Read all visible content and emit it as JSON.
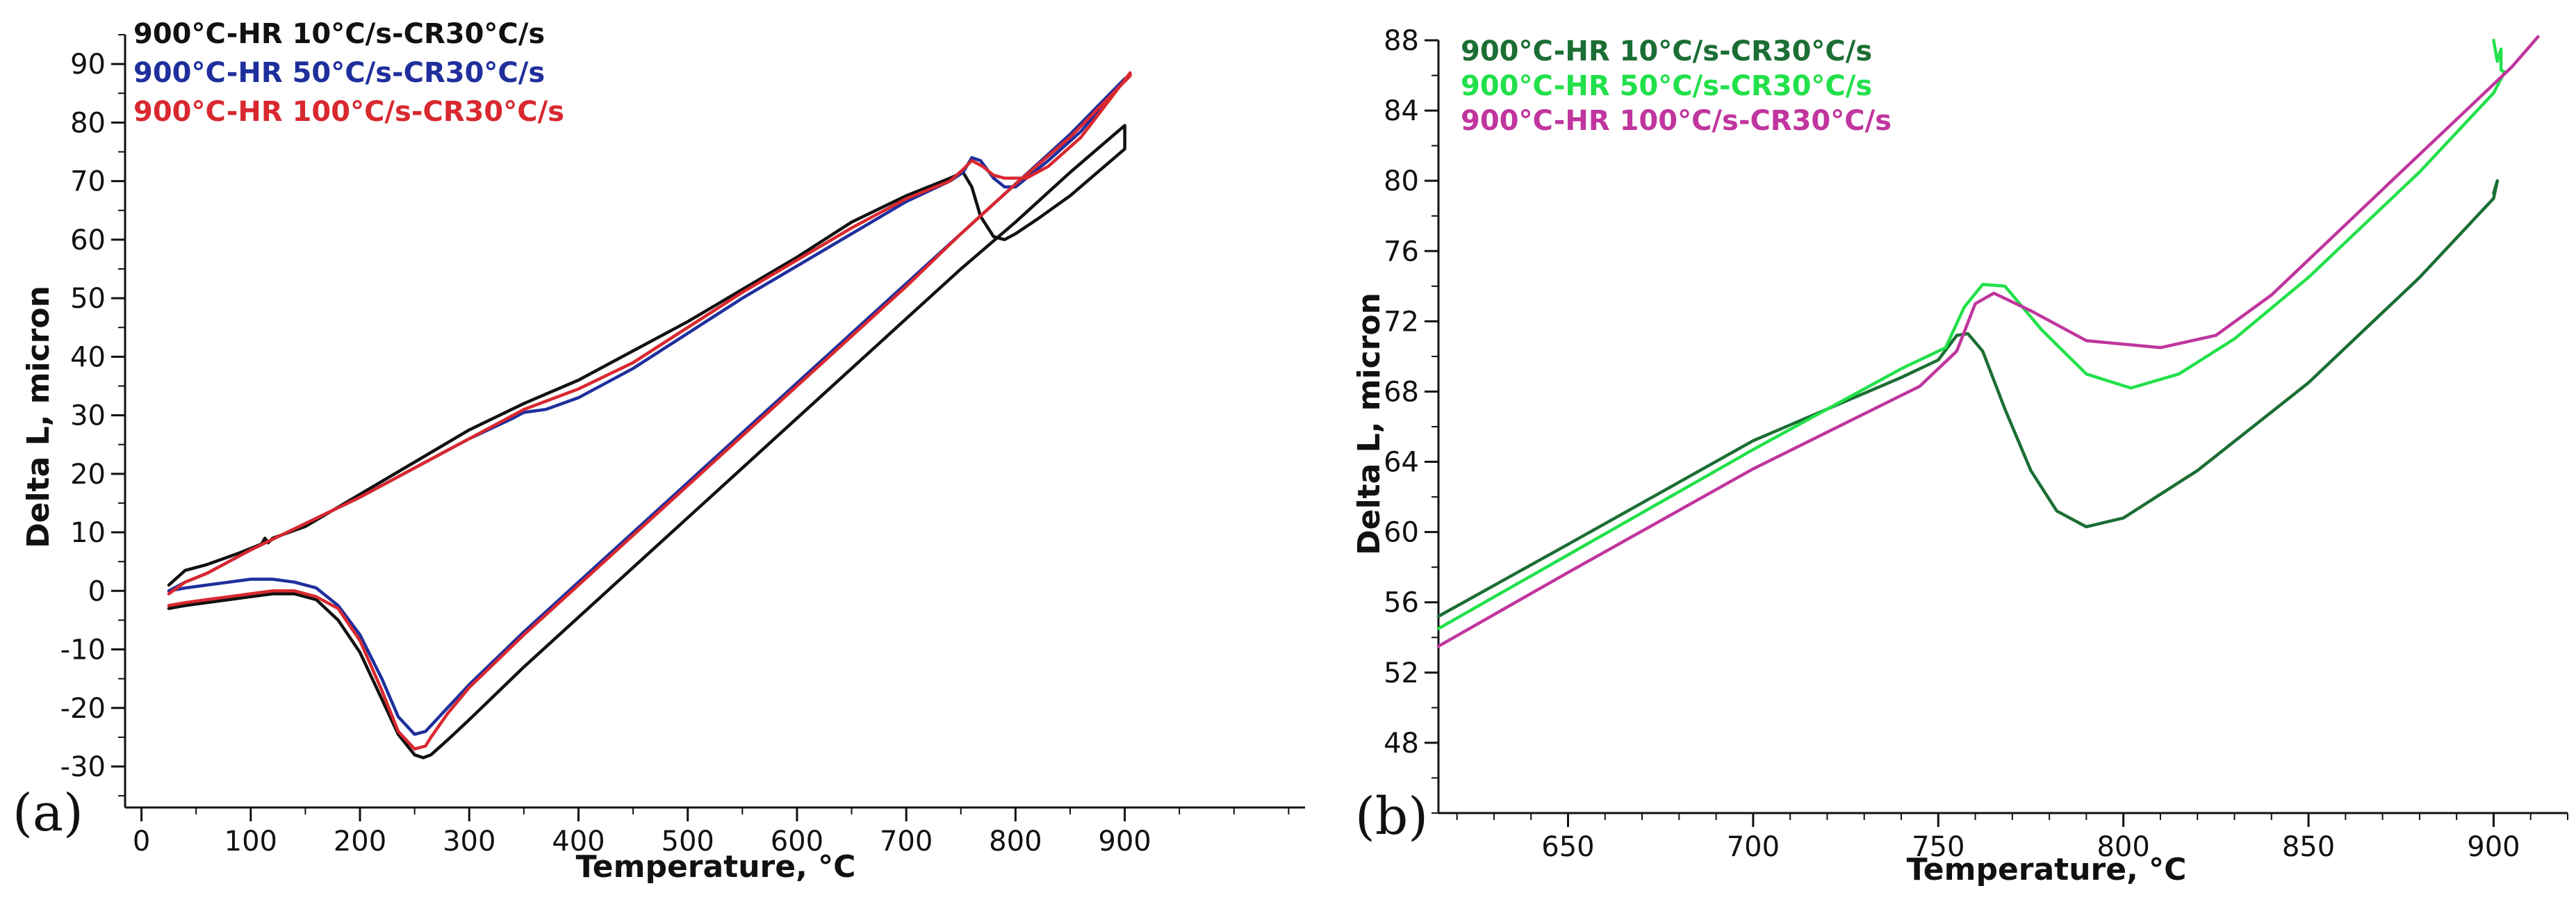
{
  "chart_data": [
    {
      "type": "line",
      "panel_label": "(a)",
      "title": "",
      "xlabel": "Temperature, °C",
      "ylabel": "Delta L, micron",
      "xlim": [
        -15,
        1065
      ],
      "ylim": [
        -37,
        95
      ],
      "xticks": [
        0,
        100,
        200,
        300,
        400,
        500,
        600,
        700,
        800,
        900
      ],
      "yticks": [
        -30,
        -20,
        -10,
        0,
        10,
        20,
        30,
        40,
        50,
        60,
        70,
        80,
        90
      ],
      "grid": false,
      "legend_position": "top-left",
      "series": [
        {
          "name": "900°C-HR 10°C/s-CR30°C/s",
          "color": "#111111",
          "x": [
            25,
            40,
            60,
            90,
            110,
            113,
            116,
            120,
            150,
            200,
            250,
            300,
            350,
            400,
            450,
            500,
            550,
            600,
            650,
            700,
            740,
            752,
            760,
            768,
            780,
            790,
            800,
            820,
            850,
            900,
            900,
            850,
            800,
            750,
            700,
            650,
            600,
            550,
            500,
            450,
            400,
            350,
            300,
            280,
            265,
            258,
            250,
            235,
            220,
            200,
            180,
            160,
            140,
            120,
            100,
            80,
            60,
            40,
            25
          ],
          "y": [
            1,
            3.5,
            4.5,
            6.5,
            8,
            9,
            8.2,
            9,
            11,
            16.5,
            22,
            27.5,
            32,
            36,
            41,
            46,
            51.5,
            57,
            63,
            67.5,
            70.5,
            71.5,
            69,
            64,
            60.5,
            60,
            61,
            63.5,
            67.5,
            75.5,
            79.5,
            71.5,
            63,
            55,
            46.5,
            38,
            29.5,
            21,
            12.5,
            4,
            -4.5,
            -13,
            -22,
            -25.5,
            -28,
            -28.5,
            -28,
            -24.5,
            -18.5,
            -10.5,
            -5,
            -1.5,
            -0.5,
            -0.5,
            -1,
            -1.5,
            -2,
            -2.5,
            -3
          ]
        },
        {
          "name": "900°C-HR 50°C/s-CR30°C/s",
          "color": "#1f2f9c",
          "x": [
            25,
            40,
            60,
            100,
            150,
            200,
            250,
            300,
            340,
            350,
            370,
            400,
            450,
            500,
            550,
            600,
            650,
            700,
            740,
            752,
            760,
            768,
            780,
            790,
            800,
            810,
            830,
            860,
            900,
            900,
            850,
            800,
            750,
            700,
            650,
            600,
            550,
            500,
            450,
            400,
            350,
            300,
            280,
            265,
            260,
            250,
            235,
            220,
            200,
            180,
            160,
            140,
            120,
            100,
            80,
            60,
            40,
            25
          ],
          "y": [
            0,
            1.5,
            3,
            7,
            11.5,
            16,
            21,
            26,
            29.5,
            30.5,
            31,
            33,
            38,
            44,
            50,
            55.5,
            61,
            66.5,
            70,
            71.5,
            74,
            73.5,
            70.5,
            69,
            69,
            70.5,
            73.5,
            78.5,
            87.5,
            87.5,
            78,
            69.5,
            61,
            52.5,
            44,
            35.5,
            27,
            18.5,
            10,
            1.5,
            -7,
            -16,
            -20,
            -23,
            -24,
            -24.5,
            -21.5,
            -15,
            -7.5,
            -2.5,
            0.5,
            1.5,
            2,
            2,
            1.5,
            1,
            0.5,
            0
          ]
        },
        {
          "name": "900°C-HR 100°C/s-CR30°C/s",
          "color": "#d9282f",
          "x": [
            25,
            40,
            60,
            100,
            150,
            200,
            250,
            300,
            350,
            400,
            450,
            500,
            550,
            600,
            650,
            700,
            740,
            752,
            760,
            770,
            780,
            790,
            800,
            810,
            830,
            860,
            905,
            905,
            850,
            800,
            750,
            700,
            650,
            600,
            550,
            500,
            450,
            400,
            350,
            300,
            280,
            265,
            260,
            250,
            235,
            220,
            200,
            180,
            160,
            140,
            120,
            100,
            80,
            60,
            40,
            25
          ],
          "y": [
            -0.5,
            1.5,
            3,
            7,
            11.5,
            16,
            21,
            26,
            31,
            34.5,
            39,
            45,
            51,
            56.5,
            62,
            67,
            70,
            72,
            73.5,
            72.5,
            71,
            70.5,
            70.5,
            70.5,
            72.5,
            77.5,
            88.5,
            88,
            77.5,
            69.5,
            61,
            52,
            43.5,
            35,
            26.5,
            18,
            9.5,
            1,
            -7.5,
            -16.5,
            -21,
            -25,
            -26.5,
            -27,
            -24,
            -17,
            -8.5,
            -3,
            -1,
            0,
            0,
            -0.5,
            -1,
            -1.5,
            -2,
            -2.5
          ]
        }
      ]
    },
    {
      "type": "line",
      "panel_label": "(b)",
      "title": "",
      "xlabel": "Temperature, °C",
      "ylabel": "Delta L, micron",
      "xlim": [
        615,
        920
      ],
      "ylim": [
        44,
        88
      ],
      "xticks": [
        650,
        700,
        750,
        800,
        850,
        900
      ],
      "yticks": [
        48,
        52,
        56,
        60,
        64,
        68,
        72,
        76,
        80,
        84,
        88
      ],
      "grid": false,
      "legend_position": "top-left",
      "series": [
        {
          "name": "900°C-HR 10°C/s-CR30°C/s",
          "color": "#1b6e34",
          "x": [
            615,
            650,
            700,
            740,
            750,
            755,
            758,
            762,
            768,
            775,
            782,
            790,
            800,
            820,
            850,
            880,
            900,
            901,
            900
          ],
          "y": [
            55.2,
            59.3,
            65.2,
            68.8,
            69.8,
            71.2,
            71.3,
            70.3,
            67,
            63.5,
            61.2,
            60.3,
            60.8,
            63.5,
            68.5,
            74.5,
            79,
            80,
            79.3
          ]
        },
        {
          "name": "900°C-HR 50°C/s-CR30°C/s",
          "color": "#22e04a",
          "x": [
            615,
            650,
            700,
            740,
            752,
            757,
            762,
            768,
            778,
            790,
            802,
            815,
            830,
            850,
            880,
            900,
            903,
            902,
            902,
            901,
            900
          ],
          "y": [
            54.5,
            58.7,
            64.7,
            69.3,
            70.5,
            72.8,
            74.1,
            74,
            71.5,
            69,
            68.2,
            69,
            71,
            74.5,
            80.5,
            85,
            86.2,
            86.3,
            87.5,
            86.8,
            88
          ]
        },
        {
          "name": "900°C-HR 100°C/s-CR30°C/s",
          "color": "#c0359e",
          "x": [
            615,
            650,
            700,
            745,
            755,
            760,
            765,
            775,
            790,
            810,
            825,
            840,
            855,
            875,
            895,
            905,
            912
          ],
          "y": [
            53.5,
            57.7,
            63.6,
            68.3,
            70.3,
            73,
            73.6,
            72.6,
            70.9,
            70.5,
            71.2,
            73.5,
            76.5,
            80.5,
            84.5,
            86.5,
            88.2
          ]
        }
      ]
    }
  ]
}
